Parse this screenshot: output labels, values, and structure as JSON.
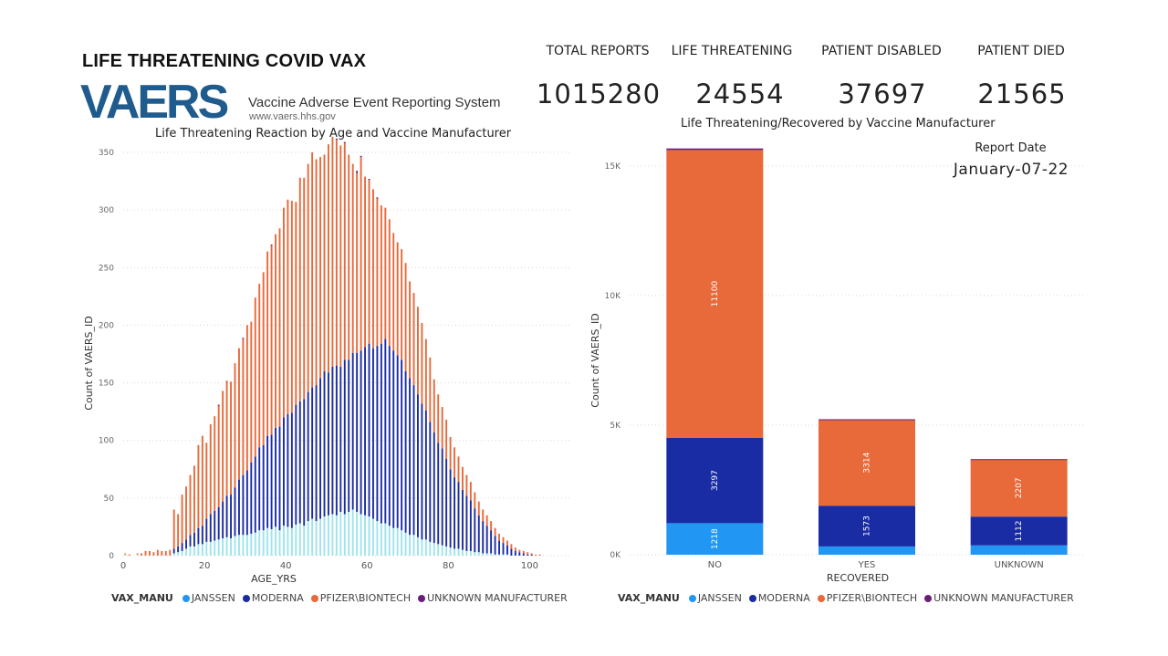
{
  "header": {
    "title": "LIFE THREATENING COVID VAX",
    "logo_word": "VAERS",
    "logo_subtitle": "Vaccine Adverse Event Reporting System",
    "logo_url": "www.vaers.hhs.gov"
  },
  "kpis": [
    {
      "label": "TOTAL REPORTS",
      "value": "1015280"
    },
    {
      "label": "LIFE THREATENING",
      "value": "24554"
    },
    {
      "label": "PATIENT DISABLED",
      "value": "37697"
    },
    {
      "label": "PATIENT DIED",
      "value": "21565"
    }
  ],
  "report_date": {
    "label": "Report Date",
    "value": "January-07-22"
  },
  "colors": {
    "JANSSEN": "#2196f3",
    "MODERNA": "#1a2ca3",
    "PFIZER\\BIONTECH": "#e8693a",
    "UNKNOWN MANUFACTURER": "#6b1d7a",
    "janssen_light": "#9fe3ea"
  },
  "chart_data": [
    {
      "type": "bar",
      "stacked": true,
      "title": "Life Threatening Reaction by Age and Vaccine Manufacturer",
      "xlabel": "AGE_YRS",
      "ylabel": "Count of VAERS_ID",
      "xlim": [
        0,
        110
      ],
      "ylim": [
        0,
        350
      ],
      "x_ticks": [
        "0",
        "20",
        "40",
        "60",
        "80",
        "100"
      ],
      "y_ticks": [
        "0",
        "50",
        "100",
        "150",
        "200",
        "250",
        "300",
        "350"
      ],
      "legend_title": "VAX_MANU",
      "legend": [
        "JANSSEN",
        "MODERNA",
        "PFIZER\\BIONTECH",
        "UNKNOWN MANUFACTURER"
      ],
      "x": [
        0,
        1,
        2,
        3,
        4,
        5,
        6,
        7,
        8,
        9,
        10,
        11,
        12,
        13,
        14,
        15,
        16,
        17,
        18,
        19,
        20,
        21,
        22,
        23,
        24,
        25,
        26,
        27,
        28,
        29,
        30,
        31,
        32,
        33,
        34,
        35,
        36,
        37,
        38,
        39,
        40,
        41,
        42,
        43,
        44,
        45,
        46,
        47,
        48,
        49,
        50,
        51,
        52,
        53,
        54,
        55,
        56,
        57,
        58,
        59,
        60,
        61,
        62,
        63,
        64,
        65,
        66,
        67,
        68,
        69,
        70,
        71,
        72,
        73,
        74,
        75,
        76,
        77,
        78,
        79,
        80,
        81,
        82,
        83,
        84,
        85,
        86,
        87,
        88,
        89,
        90,
        91,
        92,
        93,
        94,
        95,
        96,
        97,
        98,
        99,
        100,
        101,
        102,
        103,
        104,
        105,
        106
      ],
      "series": [
        {
          "name": "JANSSEN",
          "values": [
            1,
            0,
            0,
            1,
            0,
            0,
            0,
            0,
            0,
            0,
            0,
            0,
            2,
            3,
            4,
            6,
            8,
            8,
            10,
            10,
            12,
            12,
            13,
            14,
            15,
            16,
            15,
            17,
            18,
            18,
            18,
            19,
            20,
            22,
            22,
            24,
            23,
            25,
            22,
            26,
            25,
            24,
            27,
            28,
            26,
            30,
            32,
            30,
            32,
            34,
            35,
            36,
            35,
            38,
            36,
            38,
            40,
            38,
            36,
            35,
            34,
            32,
            30,
            28,
            28,
            26,
            24,
            24,
            22,
            20,
            18,
            18,
            16,
            14,
            14,
            12,
            11,
            10,
            9,
            8,
            7,
            6,
            6,
            5,
            4,
            4,
            3,
            3,
            2,
            2,
            2,
            1,
            1,
            1,
            1,
            0,
            0,
            0,
            0,
            0,
            0,
            0,
            0,
            0,
            0,
            0,
            0
          ]
        },
        {
          "name": "MODERNA",
          "values": [
            0,
            0,
            0,
            0,
            0,
            0,
            0,
            0,
            0,
            0,
            0,
            0,
            4,
            5,
            7,
            8,
            10,
            12,
            14,
            16,
            20,
            24,
            26,
            28,
            32,
            36,
            38,
            42,
            48,
            52,
            56,
            62,
            66,
            72,
            74,
            80,
            82,
            86,
            90,
            94,
            98,
            100,
            104,
            106,
            110,
            112,
            114,
            118,
            122,
            126,
            124,
            128,
            130,
            126,
            134,
            132,
            136,
            138,
            142,
            146,
            150,
            148,
            152,
            156,
            160,
            156,
            154,
            150,
            148,
            140,
            136,
            130,
            124,
            118,
            112,
            104,
            96,
            88,
            84,
            76,
            68,
            62,
            58,
            52,
            48,
            44,
            38,
            32,
            28,
            24,
            20,
            16,
            12,
            10,
            8,
            6,
            4,
            3,
            2,
            1,
            1,
            0,
            0,
            0,
            0,
            0,
            0
          ]
        },
        {
          "name": "PFIZER\\BIONTECH",
          "values": [
            1,
            1,
            0,
            1,
            2,
            4,
            4,
            3,
            5,
            4,
            4,
            5,
            34,
            28,
            42,
            46,
            52,
            58,
            72,
            78,
            66,
            78,
            82,
            88,
            96,
            100,
            98,
            108,
            114,
            118,
            126,
            122,
            138,
            142,
            150,
            160,
            164,
            168,
            172,
            182,
            186,
            184,
            176,
            194,
            192,
            198,
            204,
            196,
            192,
            188,
            198,
            202,
            196,
            192,
            188,
            178,
            164,
            156,
            168,
            148,
            142,
            138,
            128,
            120,
            114,
            110,
            102,
            98,
            96,
            94,
            84,
            80,
            76,
            70,
            62,
            56,
            46,
            42,
            36,
            34,
            28,
            26,
            22,
            20,
            18,
            16,
            14,
            12,
            10,
            9,
            8,
            7,
            6,
            5,
            4,
            4,
            3,
            2,
            2,
            2,
            1,
            1,
            1,
            0,
            0,
            0,
            0
          ]
        },
        {
          "name": "UNKNOWN MANUFACTURER",
          "values": [
            0,
            0,
            0,
            0,
            0,
            0,
            0,
            0,
            0,
            0,
            0,
            0,
            0,
            0,
            0,
            0,
            0,
            0,
            0,
            0,
            0,
            0,
            0,
            1,
            0,
            0,
            0,
            0,
            0,
            1,
            0,
            0,
            0,
            0,
            0,
            0,
            1,
            0,
            0,
            0,
            0,
            0,
            0,
            0,
            0,
            0,
            0,
            0,
            0,
            0,
            0,
            0,
            1,
            0,
            1,
            0,
            0,
            2,
            1,
            0,
            1,
            0,
            1,
            0,
            0,
            0,
            0,
            0,
            0,
            0,
            0,
            0,
            0,
            0,
            0,
            0,
            0,
            0,
            0,
            0,
            0,
            0,
            0,
            0,
            0,
            0,
            0,
            0,
            0,
            0,
            0,
            0,
            0,
            0,
            0,
            0,
            0,
            0,
            0,
            0,
            0,
            0,
            0,
            0,
            0,
            0,
            0
          ]
        }
      ]
    },
    {
      "type": "bar",
      "stacked": true,
      "title": "Life Threatening/Recovered by Vaccine Manufacturer",
      "xlabel": "RECOVERED",
      "ylabel": "Count of VAERS_ID",
      "ylim": [
        0,
        15700
      ],
      "y_ticks": [
        "0K",
        "5K",
        "10K",
        "15K"
      ],
      "categories": [
        "NO",
        "YES",
        "UNKNOWN"
      ],
      "legend_title": "VAX_MANU",
      "legend": [
        "JANSSEN",
        "MODERNA",
        "PFIZER\\BIONTECH",
        "UNKNOWN MANUFACTURER"
      ],
      "series": [
        {
          "name": "JANSSEN",
          "values": [
            1218,
            320,
            360
          ],
          "labels": [
            "1218",
            "",
            ""
          ]
        },
        {
          "name": "MODERNA",
          "values": [
            3297,
            1573,
            1112
          ],
          "labels": [
            "3297",
            "1573",
            "1112"
          ]
        },
        {
          "name": "PFIZER\\BIONTECH",
          "values": [
            11100,
            3314,
            2207
          ],
          "labels": [
            "11100",
            "3314",
            "2207"
          ]
        },
        {
          "name": "UNKNOWN MANUFACTURER",
          "values": [
            60,
            20,
            10
          ],
          "labels": [
            "",
            "",
            ""
          ]
        }
      ]
    }
  ]
}
